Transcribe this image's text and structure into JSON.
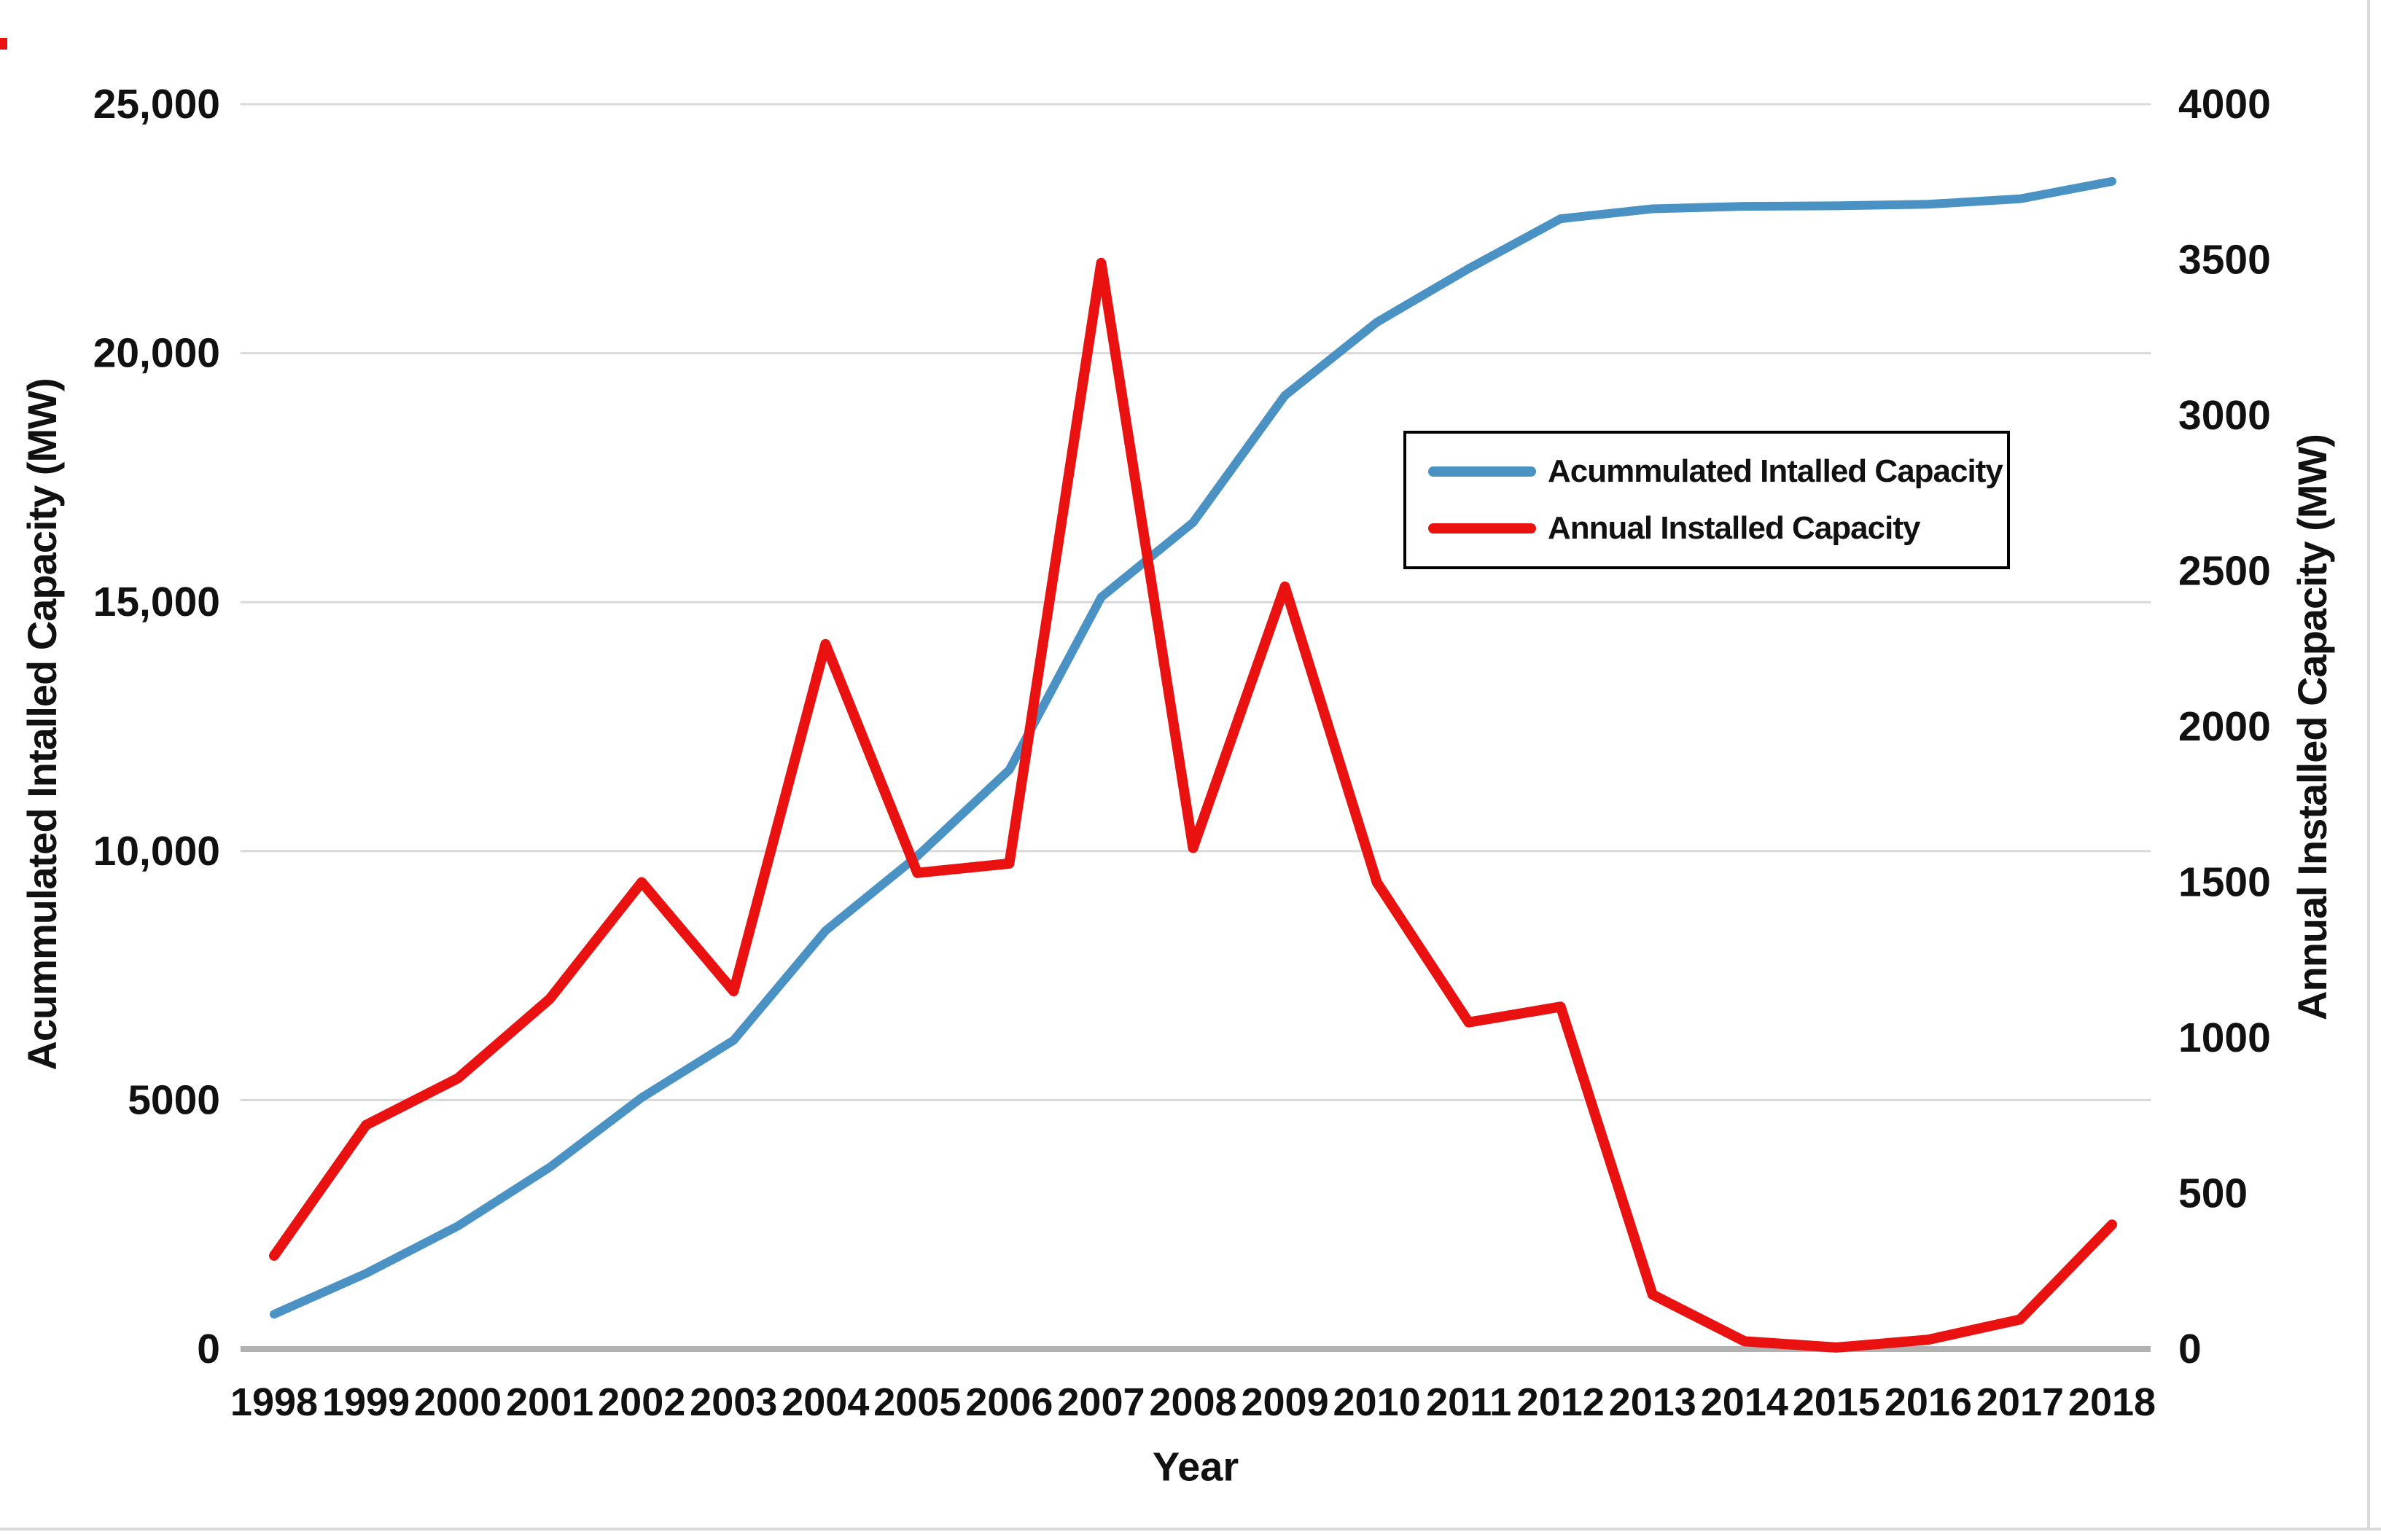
{
  "chart_data": {
    "type": "line",
    "title": "",
    "x_axis": {
      "label": "Year",
      "ticks": [
        "1998",
        "1999",
        "2000",
        "2001",
        "2002",
        "2003",
        "2004",
        "2005",
        "2006",
        "2007",
        "2008",
        "2009",
        "2010",
        "2011",
        "2012",
        "2013",
        "2014",
        "2015",
        "2016",
        "2017",
        "2018"
      ]
    },
    "left_axis": {
      "label": "Acummulated Intalled Capacity (MW)",
      "range": [
        0,
        25000
      ],
      "ticks": [
        {
          "label": "0",
          "value": 0
        },
        {
          "label": "5000",
          "value": 5000
        },
        {
          "label": "10,000",
          "value": 10000
        },
        {
          "label": "15,000",
          "value": 15000
        },
        {
          "label": "20,000",
          "value": 20000
        },
        {
          "label": "25,000",
          "value": 25000
        }
      ]
    },
    "right_axis": {
      "label": "Annual Installed Capacity (MW)",
      "range": [
        0,
        4000
      ],
      "ticks": [
        {
          "label": "0",
          "value": 0
        },
        {
          "label": "500",
          "value": 500
        },
        {
          "label": "1000",
          "value": 1000
        },
        {
          "label": "1500",
          "value": 1500
        },
        {
          "label": "2000",
          "value": 2000
        },
        {
          "label": "2500",
          "value": 2500
        },
        {
          "label": "3000",
          "value": 3000
        },
        {
          "label": "3500",
          "value": 3500
        },
        {
          "label": "4000",
          "value": 4000
        }
      ]
    },
    "series": [
      {
        "name": "Acummulated Intalled Capacity",
        "axis": "left",
        "color": "#4b92c4",
        "values": [
          700,
          1520,
          2470,
          3650,
          5050,
          6200,
          8400,
          9900,
          11630,
          15100,
          16600,
          19150,
          20620,
          21700,
          22700,
          22900,
          22950,
          22960,
          22990,
          23100,
          23450
        ]
      },
      {
        "name": "Annual Installed Capacity",
        "axis": "right",
        "color": "#ea1111",
        "values": [
          300,
          720,
          870,
          1125,
          1500,
          1150,
          2265,
          1530,
          1560,
          3490,
          1610,
          2450,
          1500,
          1050,
          1100,
          175,
          25,
          5,
          30,
          95,
          400
        ]
      }
    ],
    "grid": "horizontal",
    "gridline_color": "#d9d9d9",
    "baseline_color": "#b2b2b2",
    "text_color": "#111111",
    "legend_position": "middle-right",
    "background": "#ffffff"
  }
}
